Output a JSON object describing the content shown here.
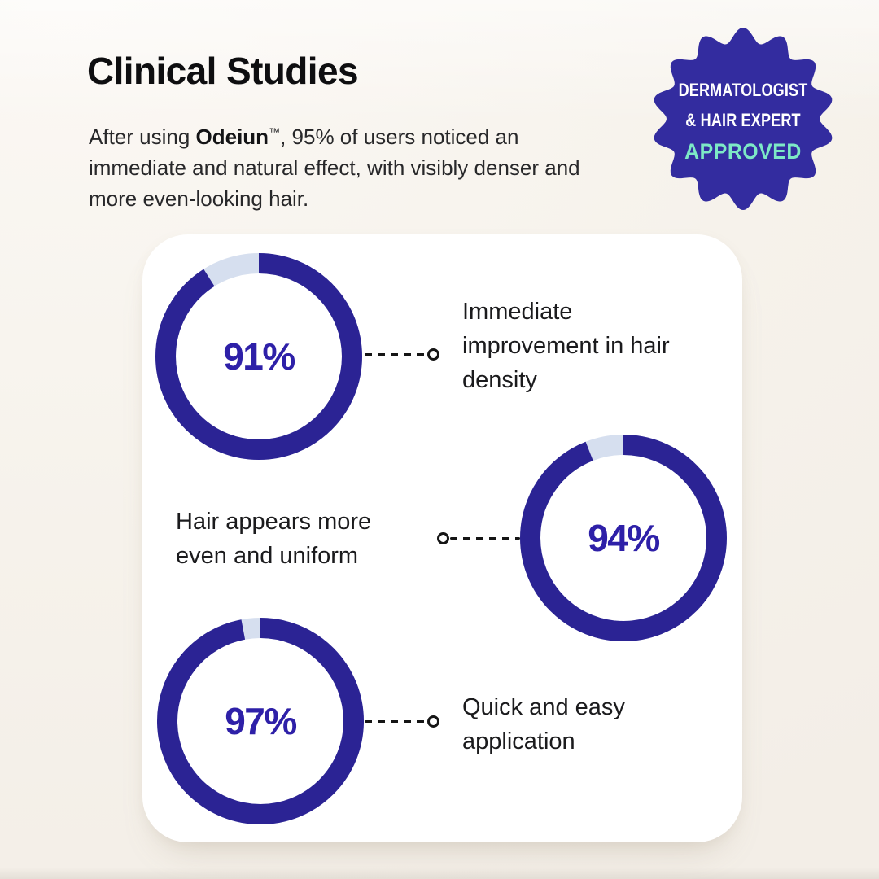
{
  "header": {
    "title": "Clinical Studies",
    "intro_prefix": "After using ",
    "intro_brand": "Odeiun",
    "intro_tm": "™",
    "intro_suffix": ", 95% of users noticed an immediate and natural effect, with visibly denser and more even-looking hair."
  },
  "badge": {
    "line1": "DERMATOLOGIST",
    "line2": "& HAIR EXPERT",
    "line3": "APPROVED",
    "bg_color": "#332c9f",
    "text_color": "#ffffff",
    "approved_color": "#7de9c6"
  },
  "chart_data": {
    "type": "pie",
    "variant": "donut-progress-rings",
    "unit": "%",
    "start_angle": "top",
    "direction": "clockwise",
    "ring_color": "#2b2394",
    "track_color": "#d6dfef",
    "value_color": "#2e20a8",
    "charts": [
      {
        "value": 91,
        "label": "91%",
        "description": "Immediate improvement in hair density",
        "callout_side": "right"
      },
      {
        "value": 94,
        "label": "94%",
        "description": "Hair appears more even and uniform",
        "callout_side": "left"
      },
      {
        "value": 97,
        "label": "97%",
        "description": "Quick and easy application",
        "callout_side": "right"
      }
    ]
  }
}
